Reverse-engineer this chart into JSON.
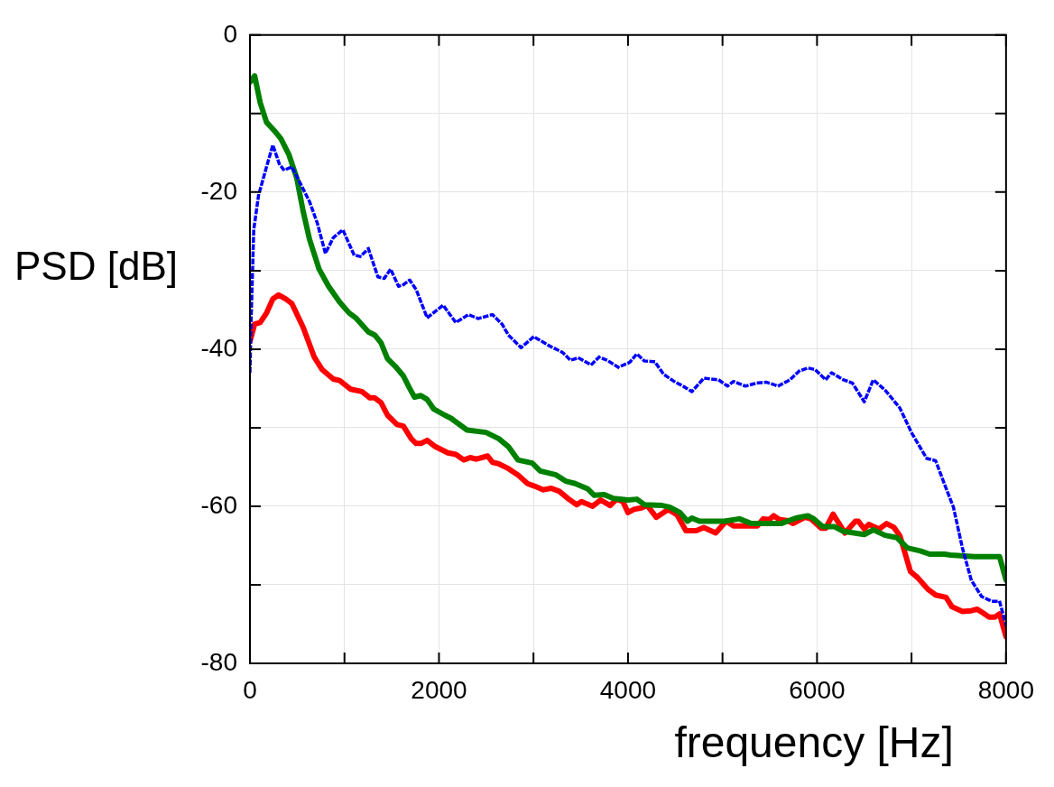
{
  "chart_data": {
    "type": "line",
    "xlabel": "frequency [Hz]",
    "ylabel": "PSD [dB]",
    "xlim": [
      0,
      8000
    ],
    "ylim": [
      -80,
      0
    ],
    "xticks": [
      0,
      {
        "value": 1000,
        "label": null
      },
      2000,
      {
        "value": 3000,
        "label": null
      },
      4000,
      {
        "value": 5000,
        "label": null
      },
      6000,
      {
        "value": 7000,
        "label": null
      },
      8000
    ],
    "yticks": [
      -80,
      {
        "value": -70,
        "label": null
      },
      -60,
      {
        "value": -50,
        "label": null
      },
      -40,
      {
        "value": -30,
        "label": null
      },
      -20,
      {
        "value": -10,
        "label": null
      },
      0
    ],
    "grid": true,
    "legend": false,
    "marker": "none",
    "series": [
      {
        "color": "#0000ff",
        "line_style": "dotted",
        "x": [
          0,
          13,
          40,
          91,
          175,
          242,
          310,
          360,
          444,
          529,
          630,
          714,
          798,
          882,
          983,
          1101,
          1168,
          1253,
          1354,
          1421,
          1488,
          1572,
          1623,
          1690,
          1758,
          1875,
          1960,
          2044,
          2178,
          2313,
          2414,
          2566,
          2667,
          2734,
          2869,
          3003,
          3172,
          3306,
          3391,
          3475,
          3610,
          3694,
          3778,
          3896,
          4016,
          4094,
          4173,
          4283,
          4377,
          4487,
          4582,
          4676,
          4802,
          4959,
          5053,
          5116,
          5242,
          5368,
          5462,
          5588,
          5714,
          5809,
          5903,
          5981,
          6091,
          6154,
          6280,
          6374,
          6500,
          6595,
          6720,
          6877,
          7003,
          7160,
          7255,
          7349,
          7443,
          7538,
          7632,
          7742,
          7852,
          7931,
          8000
        ],
        "values": [
          -42.8,
          -36,
          -24.8,
          -20.4,
          -16.8,
          -14,
          -16.4,
          -17.2,
          -16.8,
          -18.8,
          -21.2,
          -24,
          -27.8,
          -25.8,
          -24.8,
          -28,
          -28.2,
          -27.2,
          -30.8,
          -31,
          -29.8,
          -32,
          -31.8,
          -31.2,
          -32.4,
          -36,
          -35.2,
          -34.4,
          -36.6,
          -35.6,
          -36.1,
          -35.6,
          -36.8,
          -38.2,
          -39.8,
          -38.4,
          -39.6,
          -40.4,
          -41.4,
          -41.1,
          -42,
          -41,
          -41.4,
          -42.3,
          -41.7,
          -40.6,
          -41.5,
          -41.6,
          -43.2,
          -44.1,
          -44.7,
          -45.4,
          -43.7,
          -43.9,
          -44.7,
          -44.1,
          -44.7,
          -44.3,
          -44.2,
          -44.7,
          -43.9,
          -42.8,
          -42.4,
          -42.6,
          -43.9,
          -43,
          -43.9,
          -44.3,
          -46.7,
          -43.9,
          -45.2,
          -47.5,
          -50.7,
          -53.9,
          -54.2,
          -57.2,
          -60.1,
          -65.3,
          -69.4,
          -71.5,
          -72.1,
          -72.1,
          -75.1
        ]
      },
      {
        "color": "#008000",
        "line_style": "solid",
        "x": [
          0,
          50,
          108,
          175,
          259,
          327,
          411,
          495,
          562,
          630,
          731,
          832,
          949,
          1050,
          1118,
          1253,
          1320,
          1387,
          1455,
          1539,
          1623,
          1690,
          1741,
          1808,
          1875,
          1943,
          2061,
          2128,
          2297,
          2498,
          2633,
          2734,
          2835,
          2987,
          3071,
          3239,
          3340,
          3441,
          3576,
          3643,
          3744,
          3845,
          4000,
          4094,
          4173,
          4362,
          4440,
          4550,
          4629,
          4676,
          4755,
          5022,
          5179,
          5305,
          5462,
          5620,
          5777,
          5903,
          5966,
          6060,
          6186,
          6280,
          6500,
          6595,
          6720,
          6846,
          6956,
          7098,
          7192,
          7349,
          7412,
          7664,
          7931,
          8000
        ],
        "values": [
          -6,
          -5.2,
          -8.6,
          -11.1,
          -12.2,
          -13.2,
          -15.2,
          -18.2,
          -22.4,
          -26,
          -29.8,
          -32,
          -34,
          -35.4,
          -36,
          -37.8,
          -38.2,
          -39.2,
          -41.2,
          -42.2,
          -43.4,
          -45,
          -46.1,
          -45.9,
          -46.4,
          -47.6,
          -48.4,
          -48.8,
          -50.3,
          -50.6,
          -51.4,
          -52.4,
          -54.1,
          -54.5,
          -55.5,
          -56,
          -56.8,
          -57.1,
          -57.8,
          -58.6,
          -58.5,
          -59,
          -59.2,
          -59.1,
          -59.8,
          -59.9,
          -60.1,
          -60.8,
          -61.9,
          -61.5,
          -61.9,
          -61.9,
          -61.6,
          -62.2,
          -62.2,
          -62.2,
          -61.5,
          -61.2,
          -61.6,
          -62.6,
          -62.6,
          -63.2,
          -63.6,
          -63,
          -63.7,
          -64,
          -65.3,
          -65.7,
          -66.1,
          -66.1,
          -66.2,
          -66.4,
          -66.4,
          -69.4
        ]
      },
      {
        "color": "#ff0000",
        "line_style": "solid",
        "x": [
          0,
          50,
          108,
          175,
          242,
          303,
          377,
          444,
          562,
          680,
          764,
          882,
          949,
          1067,
          1185,
          1269,
          1320,
          1387,
          1455,
          1556,
          1623,
          1707,
          1758,
          1808,
          1875,
          1960,
          2094,
          2178,
          2263,
          2330,
          2397,
          2515,
          2566,
          2633,
          2734,
          2835,
          2936,
          3003,
          3104,
          3188,
          3273,
          3374,
          3458,
          3508,
          3626,
          3711,
          3811,
          3879,
          3946,
          4000,
          4063,
          4142,
          4204,
          4299,
          4425,
          4519,
          4613,
          4723,
          4802,
          4928,
          5038,
          5116,
          5368,
          5431,
          5494,
          5541,
          5604,
          5683,
          5746,
          5872,
          5934,
          6044,
          6091,
          6170,
          6296,
          6406,
          6437,
          6500,
          6547,
          6657,
          6736,
          6815,
          6878,
          6988,
          7066,
          7176,
          7255,
          7365,
          7428,
          7538,
          7632,
          7695,
          7758,
          7821,
          7884,
          7931,
          8000
        ],
        "values": [
          -39,
          -36.8,
          -36.6,
          -35.4,
          -33.6,
          -33.1,
          -33.6,
          -34.2,
          -37.2,
          -41,
          -42.6,
          -43.8,
          -44,
          -45.1,
          -45.4,
          -46.2,
          -46.2,
          -46.8,
          -48.4,
          -49.6,
          -49.8,
          -51.4,
          -52,
          -52,
          -51.6,
          -52.4,
          -53.2,
          -53.4,
          -54.1,
          -53.8,
          -54,
          -53.6,
          -54.4,
          -54.6,
          -55.2,
          -56,
          -57.1,
          -57.4,
          -57.9,
          -57.7,
          -58.1,
          -59.1,
          -59.8,
          -59.4,
          -60,
          -59.2,
          -59.9,
          -59.1,
          -59.4,
          -60.8,
          -60.4,
          -60.2,
          -59.9,
          -61.4,
          -60.4,
          -61.1,
          -63.1,
          -63.1,
          -62.7,
          -63.4,
          -61.9,
          -62.5,
          -62.5,
          -61.6,
          -61.7,
          -61.2,
          -61.7,
          -61.8,
          -62.2,
          -61.4,
          -61.6,
          -62.8,
          -62.8,
          -61,
          -63.4,
          -61.9,
          -61.9,
          -62.9,
          -62.3,
          -62.9,
          -62.2,
          -62.7,
          -63.8,
          -68.3,
          -69.1,
          -70.6,
          -71.3,
          -71.6,
          -72.8,
          -73.4,
          -73.3,
          -73.1,
          -73.6,
          -74.1,
          -74.1,
          -73.7,
          -76.6
        ]
      }
    ]
  }
}
